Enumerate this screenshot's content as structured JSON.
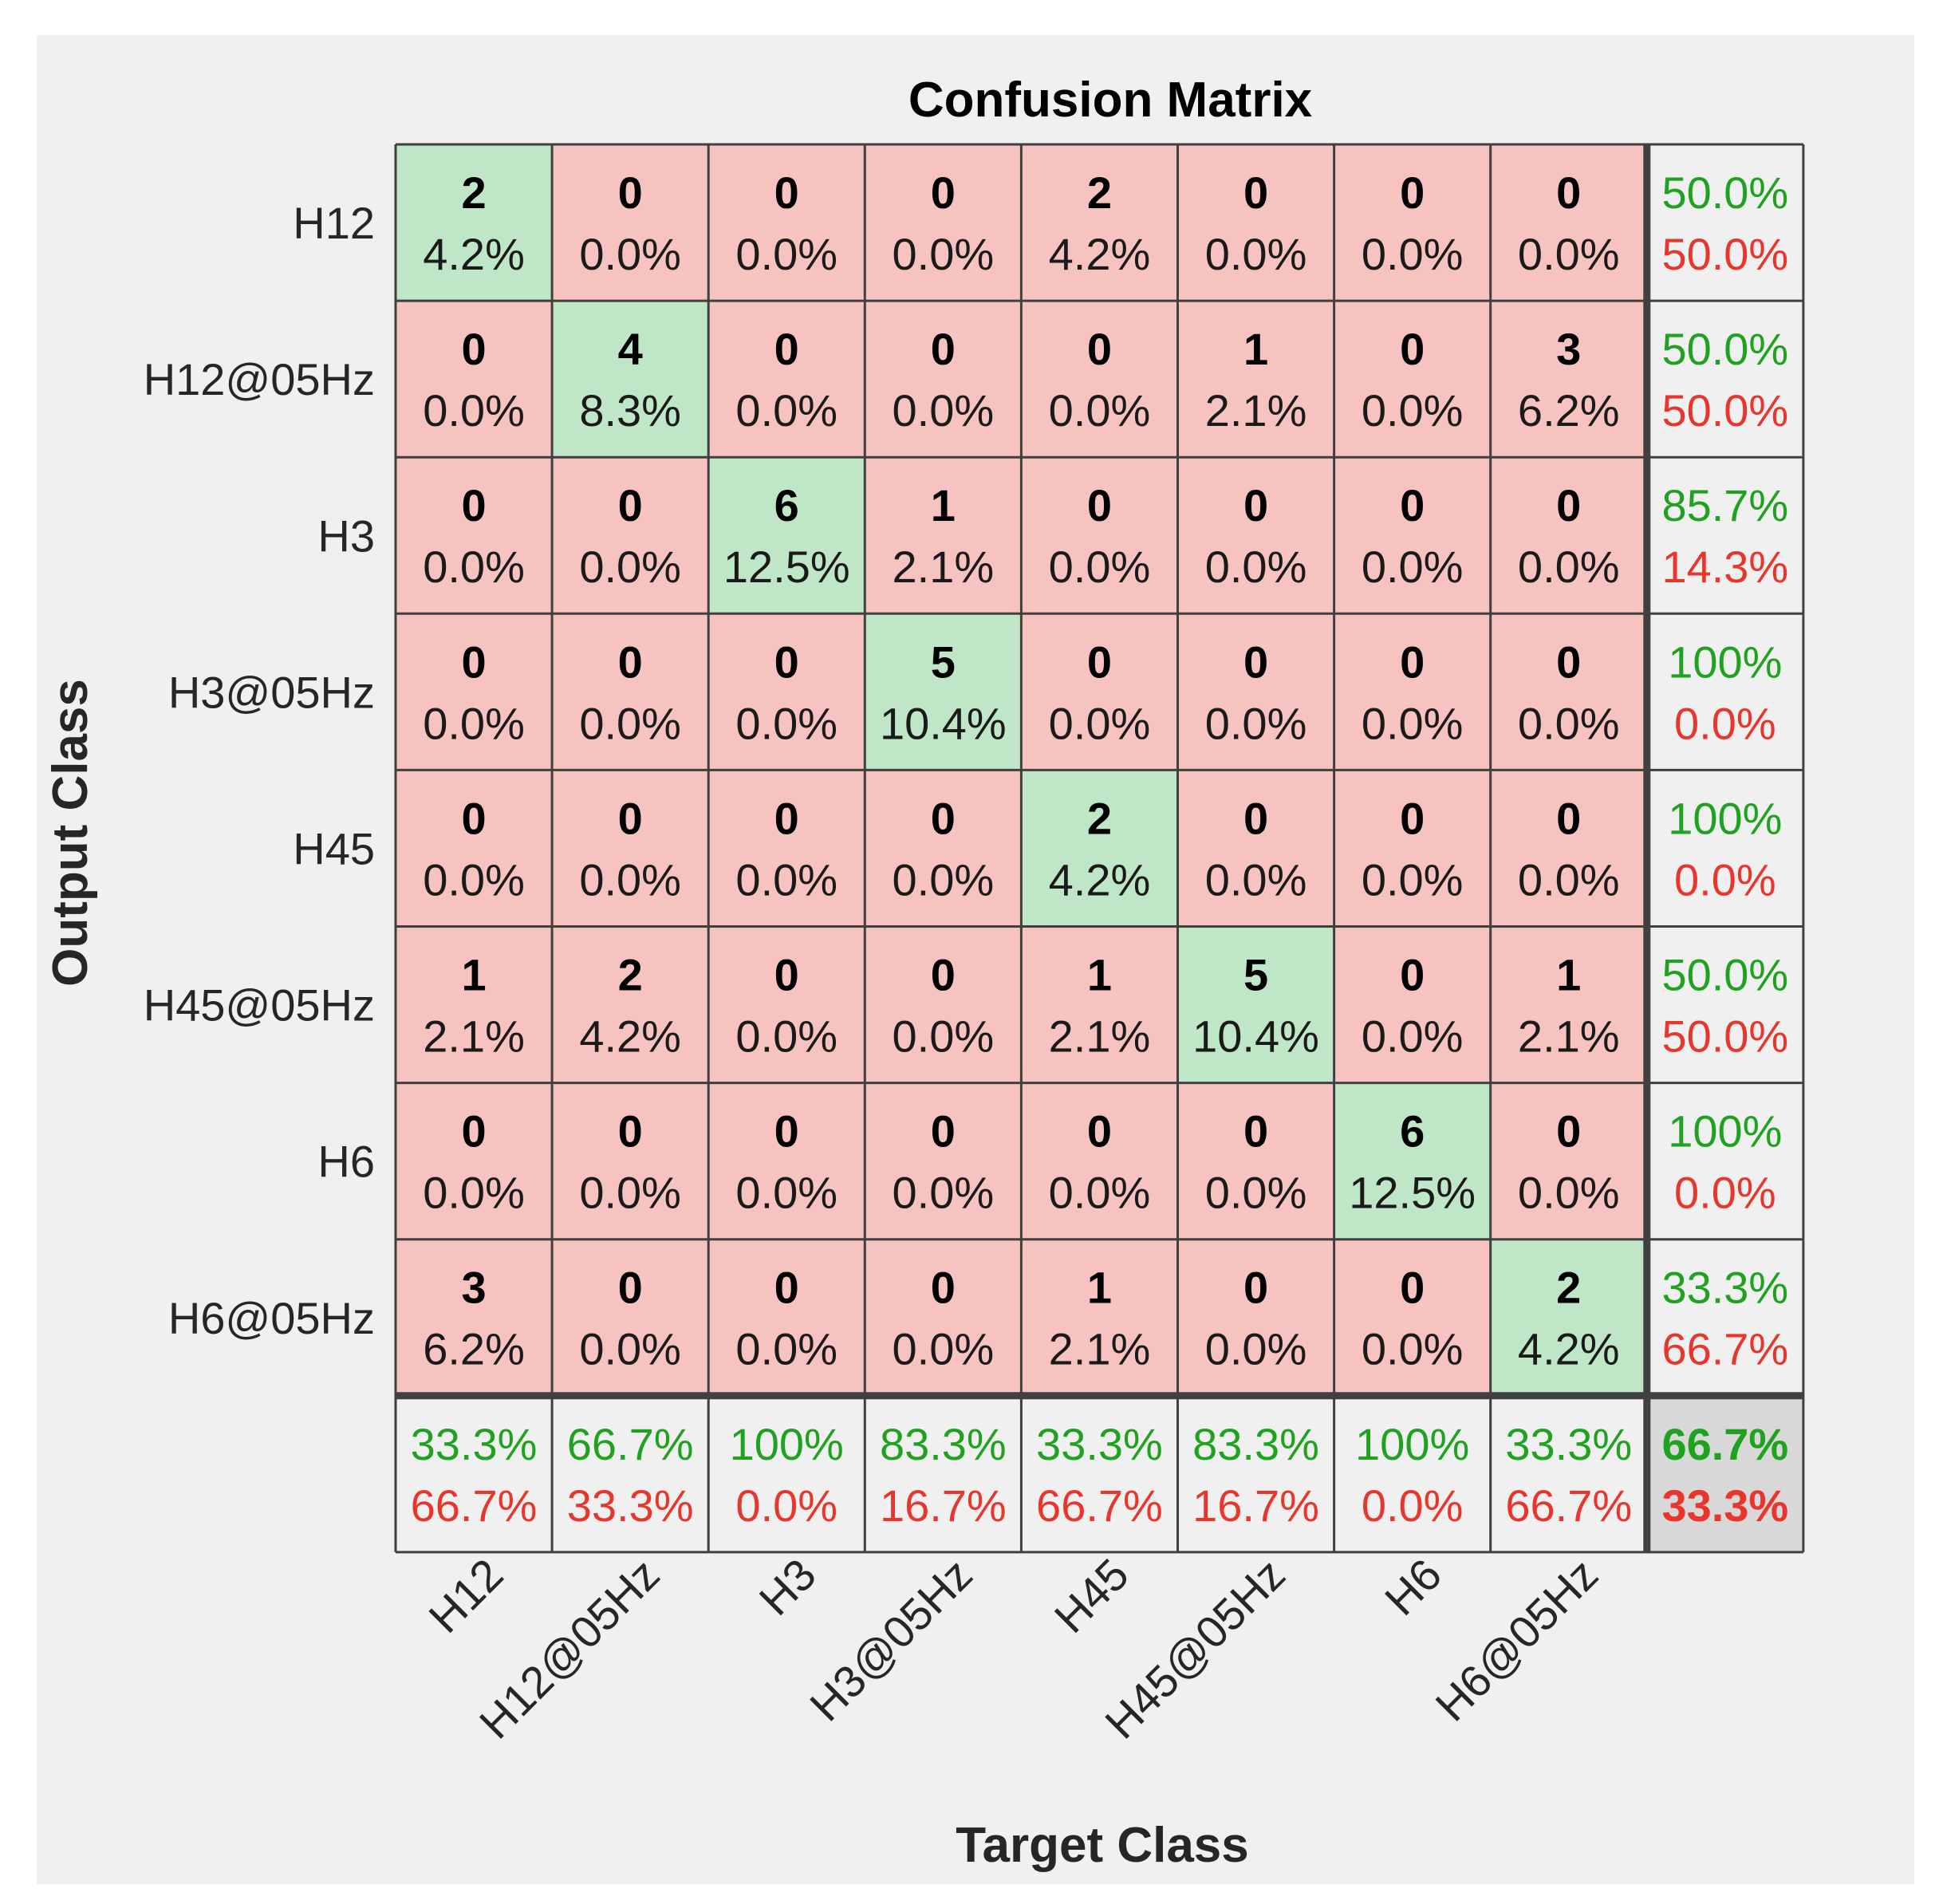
{
  "chart_data": {
    "type": "heatmap",
    "title": "Confusion Matrix",
    "xlabel": "Target Class",
    "ylabel": "Output Class",
    "classes": [
      "H12",
      "H12@05Hz",
      "H3",
      "H3@05Hz",
      "H45",
      "H45@05Hz",
      "H6",
      "H6@05Hz"
    ],
    "counts": [
      [
        2,
        0,
        0,
        0,
        2,
        0,
        0,
        0
      ],
      [
        0,
        4,
        0,
        0,
        0,
        1,
        0,
        3
      ],
      [
        0,
        0,
        6,
        1,
        0,
        0,
        0,
        0
      ],
      [
        0,
        0,
        0,
        5,
        0,
        0,
        0,
        0
      ],
      [
        0,
        0,
        0,
        0,
        2,
        0,
        0,
        0
      ],
      [
        1,
        2,
        0,
        0,
        1,
        5,
        0,
        1
      ],
      [
        0,
        0,
        0,
        0,
        0,
        0,
        6,
        0
      ],
      [
        3,
        0,
        0,
        0,
        1,
        0,
        0,
        2
      ]
    ],
    "percents": [
      [
        "4.2%",
        "0.0%",
        "0.0%",
        "0.0%",
        "4.2%",
        "0.0%",
        "0.0%",
        "0.0%"
      ],
      [
        "0.0%",
        "8.3%",
        "0.0%",
        "0.0%",
        "0.0%",
        "2.1%",
        "0.0%",
        "6.2%"
      ],
      [
        "0.0%",
        "0.0%",
        "12.5%",
        "2.1%",
        "0.0%",
        "0.0%",
        "0.0%",
        "0.0%"
      ],
      [
        "0.0%",
        "0.0%",
        "0.0%",
        "10.4%",
        "0.0%",
        "0.0%",
        "0.0%",
        "0.0%"
      ],
      [
        "0.0%",
        "0.0%",
        "0.0%",
        "0.0%",
        "4.2%",
        "0.0%",
        "0.0%",
        "0.0%"
      ],
      [
        "2.1%",
        "4.2%",
        "0.0%",
        "0.0%",
        "2.1%",
        "10.4%",
        "0.0%",
        "2.1%"
      ],
      [
        "0.0%",
        "0.0%",
        "0.0%",
        "0.0%",
        "0.0%",
        "0.0%",
        "12.5%",
        "0.0%"
      ],
      [
        "6.2%",
        "0.0%",
        "0.0%",
        "0.0%",
        "2.1%",
        "0.0%",
        "0.0%",
        "4.2%"
      ]
    ],
    "row_summary": [
      [
        "50.0%",
        "50.0%"
      ],
      [
        "50.0%",
        "50.0%"
      ],
      [
        "85.7%",
        "14.3%"
      ],
      [
        "100%",
        "0.0%"
      ],
      [
        "100%",
        "0.0%"
      ],
      [
        "50.0%",
        "50.0%"
      ],
      [
        "100%",
        "0.0%"
      ],
      [
        "33.3%",
        "66.7%"
      ]
    ],
    "col_summary": [
      [
        "33.3%",
        "66.7%"
      ],
      [
        "66.7%",
        "33.3%"
      ],
      [
        "100%",
        "0.0%"
      ],
      [
        "83.3%",
        "16.7%"
      ],
      [
        "33.3%",
        "66.7%"
      ],
      [
        "83.3%",
        "16.7%"
      ],
      [
        "100%",
        "0.0%"
      ],
      [
        "33.3%",
        "66.7%"
      ]
    ],
    "overall": [
      "66.7%",
      "33.3%"
    ]
  },
  "colors": {
    "correct": "#bfe6c6",
    "incorrect": "#f7c3c0",
    "summary": "#f0f0f0",
    "overall": "#d8d8d8",
    "good_text": "#1fa21f",
    "bad_text": "#e8362c",
    "grid": "#404040"
  }
}
